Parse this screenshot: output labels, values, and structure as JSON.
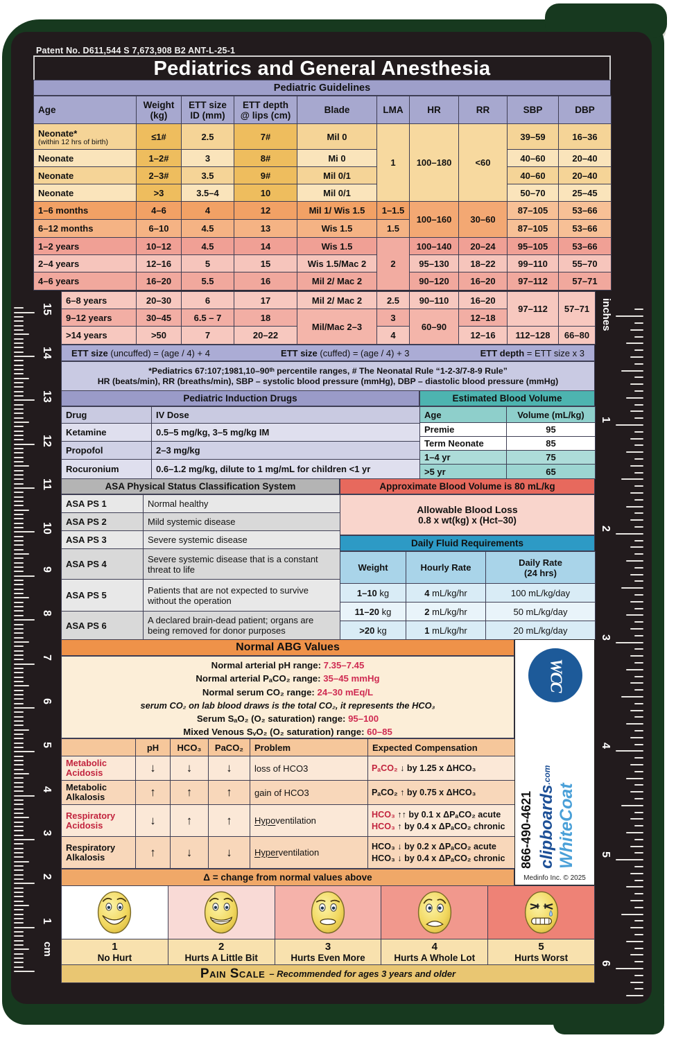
{
  "board": {
    "patent": "Patent No. D611,544 S 7,673,908 B2  ANT-L-25-1",
    "title": "Pediatrics and General Anesthesia"
  },
  "rulers": {
    "left": {
      "unit": "cm",
      "numbers": [
        "1",
        "2",
        "3",
        "4",
        "5",
        "6",
        "7",
        "8",
        "9",
        "10",
        "11",
        "12",
        "13",
        "14",
        "15"
      ]
    },
    "right": {
      "unit": "inches",
      "numbers": [
        "1",
        "2",
        "3",
        "4",
        "5",
        "6"
      ]
    }
  },
  "guidelines": {
    "title": "Pediatric Guidelines",
    "h": {
      "age": "Age",
      "w1": "Weight",
      "w2": "(kg)",
      "e1": "ETT size",
      "e2": "ID (mm)",
      "d1": "ETT depth",
      "d2": "@ lips (cm)",
      "blade": "Blade",
      "lma": "LMA",
      "hr": "HR",
      "rr": "RR",
      "sbp": "SBP",
      "dbp": "DBP"
    },
    "rows": [
      {
        "age": "Neonate*",
        "age_sub": "(within 12 hrs of birth)",
        "weight": "≤1#",
        "ett": "2.5",
        "depth": "7#",
        "blade": "Mil 0",
        "sbp": "39–59",
        "dbp": "16–36"
      },
      {
        "age": "Neonate",
        "weight": "1–2#",
        "ett": "3",
        "depth": "8#",
        "blade": "Mi 0",
        "sbp": "40–60",
        "dbp": "20–40"
      },
      {
        "age": "Neonate",
        "weight": "2–3#",
        "ett": "3.5",
        "depth": "9#",
        "blade": "Mil 0/1",
        "sbp": "40–60",
        "dbp": "20–40"
      },
      {
        "age": "Neonate",
        "weight": ">3",
        "ett": "3.5–4",
        "depth": "10",
        "blade": "Mil 0/1",
        "sbp": "50–70",
        "dbp": "25–45"
      },
      {
        "age": "1–6 months",
        "weight": "4–6",
        "ett": "4",
        "depth": "12",
        "blade": "Mil 1/ Wis 1.5",
        "lma": "1–1.5",
        "sbp": "87–105",
        "dbp": "53–66"
      },
      {
        "age": "6–12 months",
        "weight": "6–10",
        "ett": "4.5",
        "depth": "13",
        "blade": "Wis 1.5",
        "lma": "1.5",
        "sbp": "87–105",
        "dbp": "53–66"
      },
      {
        "age": "1–2 years",
        "weight": "10–12",
        "ett": "4.5",
        "depth": "14",
        "blade": "Wis 1.5",
        "hr": "100–140",
        "rr": "20–24",
        "sbp": "95–105",
        "dbp": "53–66"
      },
      {
        "age": "2–4 years",
        "weight": "12–16",
        "ett": "5",
        "depth": "15",
        "blade": "Wis 1.5/Mac 2",
        "hr": "95–130",
        "rr": "18–22",
        "sbp": "99–110",
        "dbp": "55–70"
      },
      {
        "age": "4–6 years",
        "weight": "16–20",
        "ett": "5.5",
        "depth": "16",
        "blade": "Mil 2/ Mac 2",
        "hr": "90–120",
        "rr": "16–20",
        "sbp": "97–112",
        "dbp": "57–71"
      },
      {
        "age": "6–8 years",
        "weight": "20–30",
        "ett": "6",
        "depth": "17",
        "blade": "Mil 2/ Mac 2",
        "lma": "2.5",
        "hr": "90–110",
        "rr": "16–20"
      },
      {
        "age": "9–12 years",
        "weight": "30–45",
        "ett": "6.5 – 7",
        "depth": "18",
        "lma": "3",
        "rr": "12–18"
      },
      {
        "age": ">14 years",
        "weight": ">50",
        "ett": "7",
        "depth": "20–22",
        "lma": "4",
        "rr": "12–16",
        "sbp": "112–128",
        "dbp": "66–80"
      }
    ],
    "merged": {
      "lma_neonate": "1",
      "hr_neonate": "100–180",
      "rr_neonate": "<60",
      "hr_months": "100–160",
      "rr_months": "30–60",
      "lma_years": "2",
      "blade_senior": "Mil/Mac 2–3",
      "hr_senior": "60–90",
      "sbp_senior": "97–112",
      "dbp_senior": "57–71"
    },
    "formulas": [
      {
        "b": "ETT size",
        "r": " (uncuffed) = (age / 4) + 4"
      },
      {
        "b": "ETT size",
        "r": " (cuffed) = (age / 4) + 3"
      },
      {
        "b": "ETT depth",
        "r": " = ETT size x 3"
      }
    ],
    "notes": [
      "*Pediatrics 67:107;1981,10–90ᵗʰ percentile ranges, # The Neonatal Rule “1-2-3/7-8-9 Rule”",
      "HR (beats/min), RR (breaths/min), SBP – systolic blood pressure (mmHg), DBP – diastolic blood pressure (mmHg)"
    ]
  },
  "drugs": {
    "title": "Pediatric Induction Drugs",
    "col1": "Drug",
    "col2": "IV Dose",
    "rows": [
      {
        "drug": "Ketamine",
        "dose": "0.5–5 mg/kg, 3–5 mg/kg IM"
      },
      {
        "drug": "Propofol",
        "dose": "2–3 mg/kg"
      },
      {
        "drug": "Rocuronium",
        "dose": "0.6–1.2 mg/kg, dilute to 1 mg/mL for children <1 yr"
      }
    ]
  },
  "ebv": {
    "title": "Estimated Blood Volume",
    "col1": "Age",
    "col2": "Volume (mL/kg)",
    "rows": [
      {
        "age": "Premie",
        "vol": "95"
      },
      {
        "age": "Term Neonate",
        "vol": "85"
      },
      {
        "age": "1–4 yr",
        "vol": "75"
      },
      {
        "age": ">5 yr",
        "vol": "65"
      }
    ]
  },
  "asa": {
    "title": "ASA Physical Status Classification System",
    "rows": [
      {
        "code": "ASA PS 1",
        "desc": "Normal healthy"
      },
      {
        "code": "ASA PS 2",
        "desc": "Mild systemic disease"
      },
      {
        "code": "ASA PS 3",
        "desc": "Severe systemic disease"
      },
      {
        "code": "ASA PS 4",
        "desc": "Severe systemic disease that is a constant threat to life"
      },
      {
        "code": "ASA PS 5",
        "desc": "Patients that are not expected to survive without the operation"
      },
      {
        "code": "ASA PS 6",
        "desc": "A declared brain-dead patient; organs are being removed for donor purposes"
      }
    ]
  },
  "blood": {
    "title": "Approximate Blood Volume is 80 mL/kg",
    "abl_title": "Allowable Blood Loss",
    "abl_formula": "0.8 x wt(kg) x (Hct–30)"
  },
  "fluids": {
    "title": "Daily Fluid Requirements",
    "col1": "Weight",
    "col2": "Hourly Rate",
    "col3_1": "Daily Rate",
    "col3_2": "(24 hrs)",
    "rows": [
      {
        "w": "1–10",
        "wu": " kg",
        "h": "4",
        "hu": " mL/kg/hr",
        "d": "100 mL/kg/day"
      },
      {
        "w": "11–20",
        "wu": " kg",
        "h": "2",
        "hu": " mL/kg/hr",
        "d": "50 mL/kg/day"
      },
      {
        "w": ">20",
        "wu": " kg",
        "h": "1",
        "hu": " mL/kg/hr",
        "d": "20 mL/kg/day"
      }
    ]
  },
  "abg": {
    "title": "Normal ABG Values",
    "lines": [
      {
        "label": "Normal arterial pH range: ",
        "value": "7.35–7.45"
      },
      {
        "label": "Normal arterial PₐCO₂ range: ",
        "value": "35–45 mmHg"
      },
      {
        "label": "Normal serum CO₂ range: ",
        "value": "24–30 mEq/L"
      }
    ],
    "italic_note": "serum CO₂ on lab blood draws is the total CO₂, it represents the HCO₃",
    "lines2": [
      {
        "label": "Serum SₐO₂ (O₂ saturation) range: ",
        "value": "95–100"
      },
      {
        "label": "Mixed Venous SᵥO₂ (O₂ saturation) range: ",
        "value": "60–85"
      }
    ],
    "table": {
      "headers": {
        "ph": "pH",
        "hco3": "HCO₃",
        "paco2": "PaCO₂",
        "problem": "Problem",
        "comp": "Expected Compensation"
      },
      "rows": [
        {
          "name1": "Metabolic",
          "name2": "Acidosis",
          "ph": "↓",
          "hco3": "↓",
          "paco2": "↓",
          "problem": "loss of HCO3",
          "comp1_lead": "PₐCO₂",
          "comp1_rest": " ↓ by 1.25 x ΔHCO₃"
        },
        {
          "name1": "Metabolic",
          "name2": "Alkalosis",
          "ph": "↑",
          "hco3": "↑",
          "paco2": "↑",
          "problem": "gain of HCO3",
          "comp1_lead": "PₐCO₂",
          "comp1_rest": " ↑ by 0.75 x ΔHCO₃"
        },
        {
          "name1": "Respiratory",
          "name2": "Acidosis",
          "ph": "↓",
          "hco3": "↑",
          "paco2": "↑",
          "problem_u": "Hypo",
          "problem_rest": "ventilation",
          "comp1_lead": "HCO₃",
          "comp1_rest": " ↑↑ by 0.1 x ΔPₐCO₂ acute",
          "comp2_lead": "HCO₃",
          "comp2_rest": " ↑ by 0.4 x ΔPₐCO₂ chronic"
        },
        {
          "name1": "Respiratory",
          "name2": "Alkalosis",
          "ph": "↑",
          "hco3": "↓",
          "paco2": "↓",
          "problem_u": "Hyper",
          "problem_rest": "ventilation",
          "comp1_lead": "HCO₃",
          "comp1_rest": " ↓ by 0.2 x ΔPₐCO₂ acute",
          "comp2_lead": "HCO₃",
          "comp2_rest": " ↓ by 0.4 x ΔPₐCO₂ chronic"
        }
      ]
    },
    "delta_note": "Δ = change from normal values above"
  },
  "logo": {
    "monogram": "WCC",
    "brand1": "WhiteCoat",
    "brand2": "clipboards",
    "tld": ".com",
    "phone": "866-490-4621",
    "copyright": "Medinfo Inc. © 2025",
    "colors": {
      "circle": "#1d5a99",
      "brand1": "#4aa0d8",
      "brand2": "#1c4f96"
    }
  },
  "pain": {
    "cells": [
      {
        "num": "1",
        "label": "No Hurt"
      },
      {
        "num": "2",
        "label": "Hurts A Little Bit"
      },
      {
        "num": "3",
        "label": "Hurts Even More"
      },
      {
        "num": "4",
        "label": "Hurts A Whole Lot"
      },
      {
        "num": "5",
        "label": "Hurts Worst"
      }
    ],
    "colors": [
      "#ffffff",
      "#f9dad6",
      "#f5b2aa",
      "#f1988d",
      "#ee8276"
    ],
    "footer_title": "Pain Scale",
    "footer_note": "– Recommended for ages 3 years and older"
  }
}
